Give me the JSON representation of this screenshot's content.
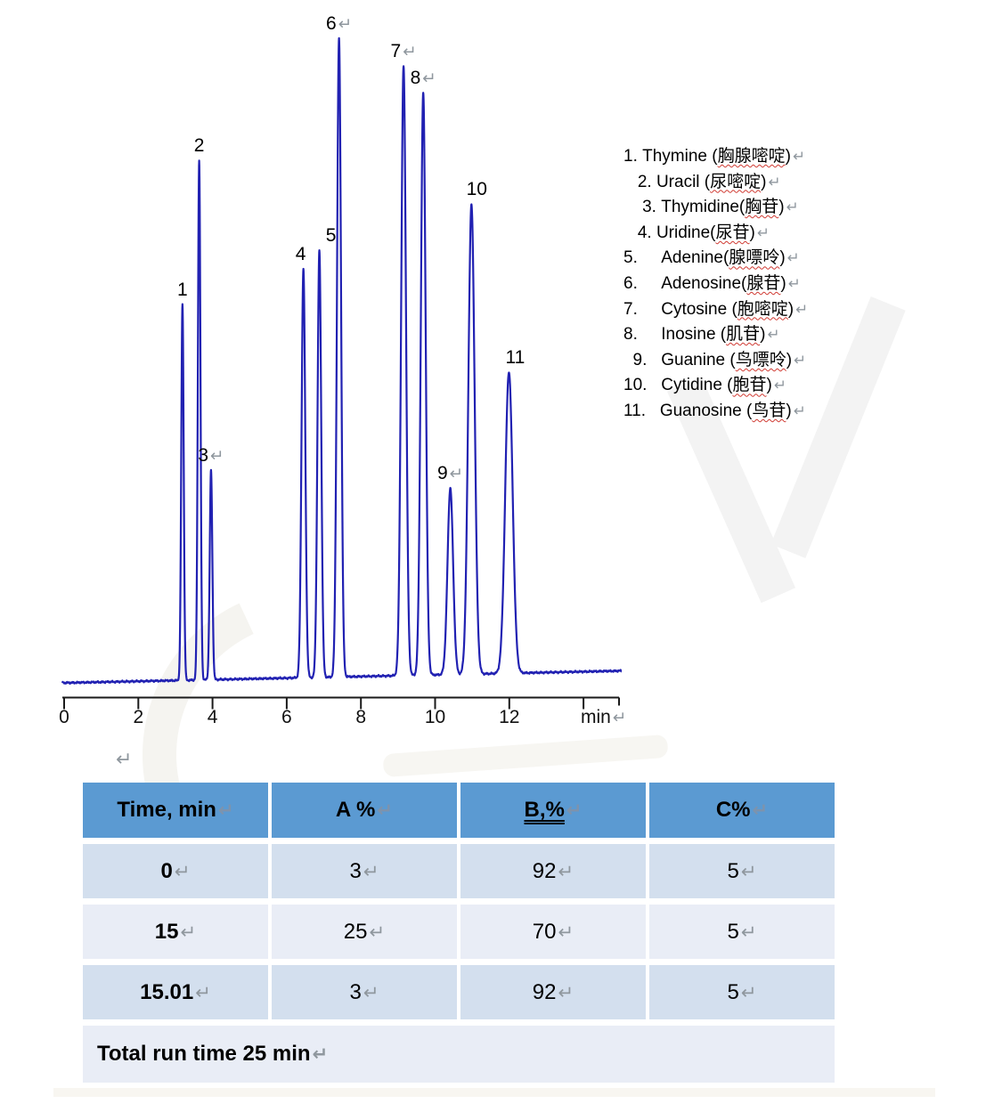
{
  "marks": {
    "paragraph": "↵"
  },
  "chart_data": {
    "type": "line",
    "title": "",
    "xlabel": "min",
    "x_axis_range_min": [
      0,
      15
    ],
    "x_ticks": [
      0,
      2,
      4,
      6,
      8,
      10,
      12
    ],
    "x_tick_labels": [
      "0",
      "2",
      "4",
      "6",
      "8",
      "10",
      "12"
    ],
    "grid": false,
    "trace_color": "#2121b2",
    "baseline": "flat near zero with slight noise",
    "peaks": [
      {
        "num": "1",
        "compound": "Thymine",
        "rt_min": 3.19,
        "rel_height_pct": 59.0,
        "sigma_min": 0.033,
        "label_dx": 0,
        "return_mark": false
      },
      {
        "num": "2",
        "compound": "Uracil",
        "rt_min": 3.64,
        "rel_height_pct": 81.5,
        "sigma_min": 0.035,
        "label_dx": 0,
        "return_mark": false
      },
      {
        "num": "3",
        "compound": "Thymidine",
        "rt_min": 3.96,
        "rel_height_pct": 32.8,
        "sigma_min": 0.035,
        "label_dx": 0,
        "return_mark": true
      },
      {
        "num": "4",
        "compound": "Uridine",
        "rt_min": 6.45,
        "rel_height_pct": 64.0,
        "sigma_min": 0.05,
        "label_dx": -3,
        "return_mark": false
      },
      {
        "num": "5",
        "compound": "Adenine",
        "rt_min": 6.88,
        "rel_height_pct": 66.8,
        "sigma_min": 0.05,
        "label_dx": 13,
        "return_mark": false
      },
      {
        "num": "6",
        "compound": "Adenosine",
        "rt_min": 7.41,
        "rel_height_pct": 100.0,
        "sigma_min": 0.055,
        "label_dx": 0,
        "return_mark": true
      },
      {
        "num": "7",
        "compound": "Cytosine",
        "rt_min": 9.15,
        "rel_height_pct": 95.4,
        "sigma_min": 0.065,
        "label_dx": 0,
        "return_mark": true
      },
      {
        "num": "8",
        "compound": "Inosine",
        "rt_min": 9.68,
        "rel_height_pct": 91.2,
        "sigma_min": 0.065,
        "label_dx": 0,
        "return_mark": true
      },
      {
        "num": "9",
        "compound": "Guanine",
        "rt_min": 10.41,
        "rel_height_pct": 29.2,
        "sigma_min": 0.075,
        "label_dx": 0,
        "return_mark": true
      },
      {
        "num": "10",
        "compound": "Cytidine",
        "rt_min": 10.98,
        "rel_height_pct": 73.5,
        "sigma_min": 0.085,
        "label_dx": 6,
        "return_mark": false
      },
      {
        "num": "11",
        "compound": "Guanosine",
        "rt_min": 11.99,
        "rel_height_pct": 47.2,
        "sigma_min": 0.1,
        "label_dx": 7,
        "return_mark": false
      }
    ]
  },
  "legend": {
    "items": [
      {
        "pre": "1. Thymine (",
        "cn": "胸腺嘧啶",
        "post": ")"
      },
      {
        "pre": "   2. Uracil (",
        "cn": "尿嘧啶",
        "post": ")"
      },
      {
        "pre": "    3. Thymidine(",
        "cn": "胸苷",
        "post": ")"
      },
      {
        "pre": "   4. Uridine(",
        "cn": "尿苷",
        "post": ")"
      },
      {
        "pre": "5.     Adenine(",
        "cn": "腺嘌呤",
        "post": ")"
      },
      {
        "pre": "6.     Adenosine(",
        "cn": "腺苷",
        "post": ")"
      },
      {
        "pre": "7.     Cytosine (",
        "cn": "胞嘧啶",
        "post": ")"
      },
      {
        "pre": "8.     Inosine (",
        "cn": "肌苷",
        "post": ")"
      },
      {
        "pre": "  9.   Guanine (",
        "cn": "鸟嘌呤",
        "post": ")"
      },
      {
        "pre": "10.   Cytidine (",
        "cn": "胞苷",
        "post": ")"
      },
      {
        "pre": "11.   Guanosine (",
        "cn": "鸟苷",
        "post": ")"
      }
    ]
  },
  "gradient_table": {
    "headers": [
      {
        "label": "Time, min",
        "underline": false
      },
      {
        "label": "A %",
        "underline": false
      },
      {
        "label": "B,%",
        "underline": true
      },
      {
        "label": "C%",
        "underline": false
      }
    ],
    "rows": [
      [
        "0",
        "3",
        "92",
        "5"
      ],
      [
        "15",
        "25",
        "70",
        "5"
      ],
      [
        "15.01",
        "3",
        "92",
        "5"
      ]
    ],
    "footer": "Total run time 25 min",
    "header_bg": "#5b9ad2",
    "row_bg_dark": "#d3dfee",
    "row_bg_light": "#e9edf6"
  }
}
